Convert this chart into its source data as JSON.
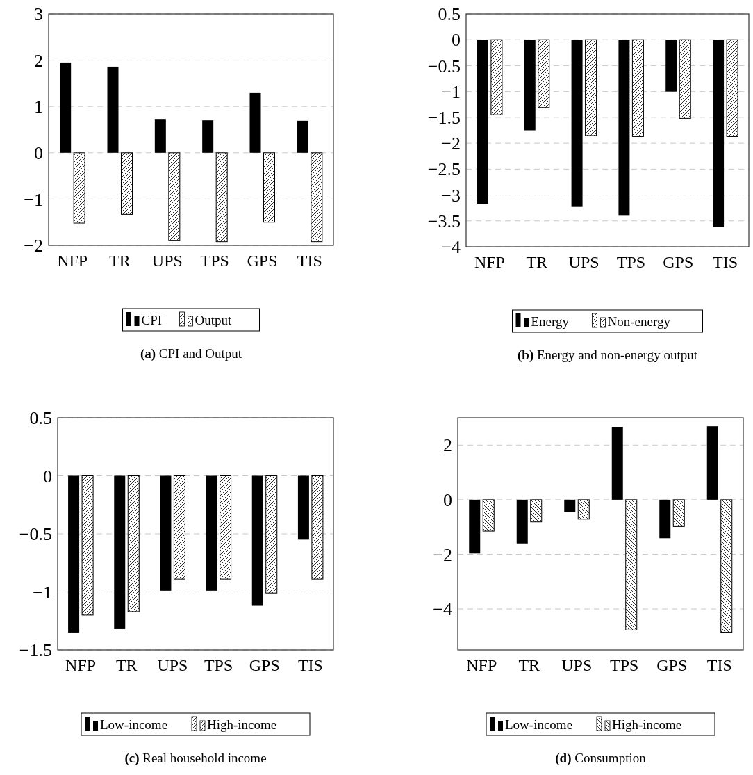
{
  "chart_data": [
    {
      "type": "bar",
      "title": "(a) CPI and Output",
      "categories": [
        "NFP",
        "TR",
        "UPS",
        "TPS",
        "GPS",
        "TIS"
      ],
      "series": [
        {
          "name": "CPI",
          "color": "#000000",
          "values": [
            1.95,
            1.86,
            0.73,
            0.7,
            1.29,
            0.69
          ]
        },
        {
          "name": "Output",
          "color": "#ffffff",
          "values": [
            -1.52,
            -1.33,
            -1.9,
            -1.92,
            -1.5,
            -1.92
          ]
        }
      ],
      "ylim": [
        -2,
        3
      ],
      "yticks": [
        -2,
        -1,
        0,
        1,
        2,
        3
      ],
      "grid": "y",
      "legend": "bottom"
    },
    {
      "type": "bar",
      "title": "(b) Energy and non-energy output",
      "categories": [
        "NFP",
        "TR",
        "UPS",
        "TPS",
        "GPS",
        "TIS"
      ],
      "series": [
        {
          "name": "Energy",
          "color": "#000000",
          "values": [
            -3.17,
            -1.75,
            -3.23,
            -3.4,
            -1.0,
            -3.62
          ]
        },
        {
          "name": "Non-energy",
          "color": "#ffffff",
          "values": [
            -1.45,
            -1.31,
            -1.85,
            -1.87,
            -1.52,
            -1.87
          ]
        }
      ],
      "ylim": [
        -4,
        0.5
      ],
      "yticks": [
        -4,
        -3.5,
        -3,
        -2.5,
        -2,
        -1.5,
        -1,
        -0.5,
        0,
        0.5
      ],
      "grid": "y",
      "legend": "bottom"
    },
    {
      "type": "bar",
      "title": "(c) Real household income",
      "categories": [
        "NFP",
        "TR",
        "UPS",
        "TPS",
        "GPS",
        "TIS"
      ],
      "series": [
        {
          "name": "Low-income",
          "color": "#000000",
          "values": [
            -1.35,
            -1.32,
            -0.99,
            -0.99,
            -1.12,
            -0.55
          ]
        },
        {
          "name": "High-income",
          "color": "#ffffff",
          "values": [
            -1.2,
            -1.17,
            -0.89,
            -0.89,
            -1.01,
            -0.89
          ]
        }
      ],
      "ylim": [
        -1.5,
        0.5
      ],
      "yticks": [
        -1.5,
        -1,
        -0.5,
        0,
        0.5
      ],
      "grid": "y",
      "legend": "bottom"
    },
    {
      "type": "bar",
      "title": "(d) Consumption",
      "categories": [
        "NFP",
        "TR",
        "UPS",
        "TPS",
        "GPS",
        "TIS"
      ],
      "series": [
        {
          "name": "Low-income",
          "color": "#000000",
          "values": [
            -1.97,
            -1.6,
            -0.44,
            2.66,
            -1.41,
            2.69
          ]
        },
        {
          "name": "High-income",
          "color": "#ffffff",
          "values": [
            -1.15,
            -0.81,
            -0.71,
            -4.77,
            -0.98,
            -4.85
          ]
        }
      ],
      "ylim": [
        -5.5,
        3
      ],
      "yticks": [
        -4,
        -2,
        0,
        2
      ],
      "grid": "y",
      "legend": "bottom"
    }
  ]
}
